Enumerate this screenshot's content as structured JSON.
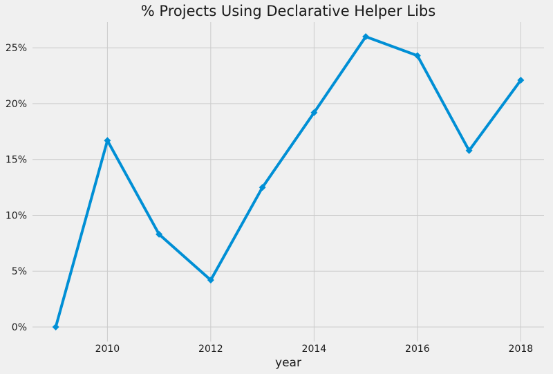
{
  "chart_data": {
    "type": "line",
    "title": "% Projects Using Declarative Helper Libs",
    "xlabel": "year",
    "ylabel": "",
    "x": [
      2009,
      2010,
      2011,
      2012,
      2013,
      2014,
      2015,
      2016,
      2017,
      2018
    ],
    "series": [
      {
        "values": [
          0.0,
          16.7,
          8.3,
          4.2,
          12.5,
          19.2,
          26.0,
          24.3,
          15.8,
          22.1
        ],
        "color": "#008fd5",
        "marker": "diamond"
      }
    ],
    "xlim": [
      2008.55,
      2018.45
    ],
    "ylim": [
      -1.3,
      27.3
    ],
    "xticks": [
      2010,
      2012,
      2014,
      2016,
      2018
    ],
    "yticks": [
      0,
      5,
      10,
      15,
      20,
      25
    ],
    "ytick_labels": [
      "0%",
      "5%",
      "10%",
      "15%",
      "20%",
      "25%"
    ],
    "grid": true
  }
}
